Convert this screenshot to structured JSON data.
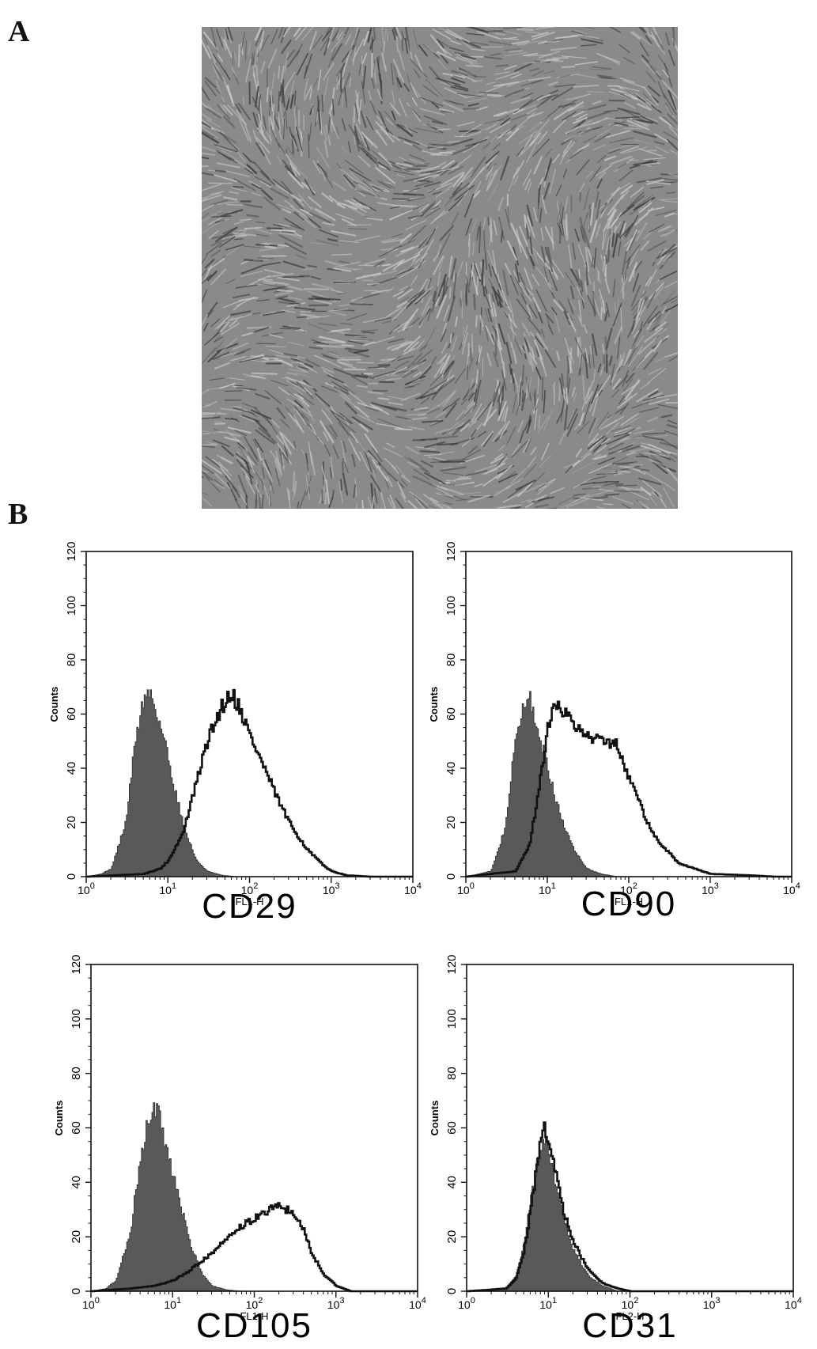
{
  "panel_labels": {
    "a": "A",
    "b": "B"
  },
  "micrograph": {
    "type": "image",
    "tone_colors": {
      "base": "#8a8a8a",
      "light": "#c8c8c8",
      "dark": "#3c3c3c"
    }
  },
  "chart_data": [
    {
      "type": "area",
      "marker": "CD29",
      "xlabel": "FL1-H",
      "ylabel": "Counts",
      "xscale": "log",
      "xlim": [
        1,
        10000
      ],
      "ylim": [
        0,
        120
      ],
      "xticks": [
        1,
        10,
        100,
        1000,
        10000
      ],
      "xtick_labels": [
        [
          "10",
          "0"
        ],
        [
          "10",
          "1"
        ],
        [
          "10",
          "2"
        ],
        [
          "10",
          "3"
        ],
        [
          "10",
          "4"
        ]
      ],
      "yticks": [
        0,
        20,
        40,
        60,
        80,
        100,
        120
      ],
      "isotype": {
        "fill": "#595959",
        "x": [
          1,
          1.5,
          2,
          3,
          4,
          5,
          6,
          7,
          9,
          12,
          16,
          22,
          30,
          45,
          70,
          100
        ],
        "y": [
          0,
          1,
          3,
          20,
          52,
          66,
          68,
          62,
          50,
          32,
          17,
          6,
          2,
          0.5,
          0,
          0
        ]
      },
      "stained": {
        "x": [
          1,
          5,
          8,
          10,
          15,
          20,
          30,
          45,
          60,
          80,
          100,
          150,
          200,
          300,
          500,
          800,
          1000,
          1500,
          3000
        ],
        "y": [
          0,
          1,
          3,
          6,
          16,
          30,
          50,
          63,
          68,
          60,
          52,
          40,
          31,
          20,
          10,
          4,
          2,
          0.5,
          0
        ]
      }
    },
    {
      "type": "area",
      "marker": "CD90",
      "xlabel": "FL1-H",
      "ylabel": "Counts",
      "xscale": "log",
      "xlim": [
        1,
        10000
      ],
      "ylim": [
        0,
        120
      ],
      "xticks": [
        1,
        10,
        100,
        1000,
        10000
      ],
      "xtick_labels": [
        [
          "10",
          "0"
        ],
        [
          "10",
          "1"
        ],
        [
          "10",
          "2"
        ],
        [
          "10",
          "3"
        ],
        [
          "10",
          "4"
        ]
      ],
      "yticks": [
        0,
        20,
        40,
        60,
        80,
        100,
        120
      ],
      "isotype": {
        "fill": "#595959",
        "x": [
          1,
          2,
          3,
          4,
          5,
          6,
          7,
          9,
          12,
          16,
          22,
          30,
          45,
          70,
          100
        ],
        "y": [
          0,
          2,
          18,
          50,
          63,
          66,
          58,
          45,
          30,
          18,
          9,
          3,
          1,
          0,
          0
        ]
      },
      "stained": {
        "x": [
          1,
          4,
          6,
          8,
          10,
          12,
          15,
          20,
          30,
          45,
          60,
          70,
          90,
          120,
          200,
          400,
          1000,
          3000,
          6000
        ],
        "y": [
          0,
          2,
          12,
          35,
          55,
          66,
          62,
          56,
          52,
          50,
          50,
          49,
          40,
          30,
          15,
          5,
          1,
          0.5,
          0
        ]
      }
    },
    {
      "type": "area",
      "marker": "CD105",
      "xlabel": "FL1-H",
      "ylabel": "Counts",
      "xscale": "log",
      "xlim": [
        1,
        10000
      ],
      "ylim": [
        0,
        120
      ],
      "xticks": [
        1,
        10,
        100,
        1000,
        10000
      ],
      "xtick_labels": [
        [
          "10",
          "0"
        ],
        [
          "10",
          "1"
        ],
        [
          "10",
          "2"
        ],
        [
          "10",
          "3"
        ],
        [
          "10",
          "4"
        ]
      ],
      "yticks": [
        0,
        20,
        40,
        60,
        80,
        100,
        120
      ],
      "isotype": {
        "fill": "#595959",
        "x": [
          1,
          1.5,
          2,
          3,
          4,
          5,
          6,
          7,
          9,
          12,
          16,
          22,
          30,
          45,
          70,
          100
        ],
        "y": [
          0,
          1,
          4,
          22,
          50,
          64,
          68,
          62,
          48,
          33,
          18,
          7,
          2,
          0.5,
          0,
          0
        ]
      },
      "stained": {
        "x": [
          1,
          3,
          6,
          10,
          15,
          20,
          30,
          45,
          70,
          100,
          150,
          200,
          300,
          400,
          500,
          700,
          1000,
          1500
        ],
        "y": [
          0,
          1,
          2,
          4,
          7,
          10,
          14,
          19,
          24,
          27,
          30,
          31,
          29,
          22,
          14,
          6,
          2,
          0
        ]
      }
    },
    {
      "type": "area",
      "marker": "CD31",
      "xlabel": "FL2-H",
      "ylabel": "Counts",
      "xscale": "log",
      "xlim": [
        1,
        10000
      ],
      "ylim": [
        0,
        120
      ],
      "xticks": [
        1,
        10,
        100,
        1000,
        10000
      ],
      "xtick_labels": [
        [
          "10",
          "0"
        ],
        [
          "10",
          "1"
        ],
        [
          "10",
          "2"
        ],
        [
          "10",
          "3"
        ],
        [
          "10",
          "4"
        ]
      ],
      "yticks": [
        0,
        20,
        40,
        60,
        80,
        100,
        120
      ],
      "isotype": {
        "fill": "#595959",
        "x": [
          1,
          3,
          4,
          5,
          6,
          7,
          8,
          9,
          10,
          12,
          15,
          20,
          30,
          45,
          70,
          100
        ],
        "y": [
          0,
          1,
          6,
          18,
          33,
          45,
          53,
          55,
          50,
          40,
          27,
          15,
          6,
          2,
          0,
          0
        ]
      },
      "stained": {
        "x": [
          1,
          3,
          4,
          5,
          6,
          7,
          8,
          9,
          10,
          12,
          15,
          20,
          30,
          45,
          70,
          100
        ],
        "y": [
          0,
          1,
          5,
          15,
          30,
          45,
          55,
          60,
          55,
          45,
          30,
          18,
          8,
          3,
          1,
          0
        ]
      }
    }
  ]
}
